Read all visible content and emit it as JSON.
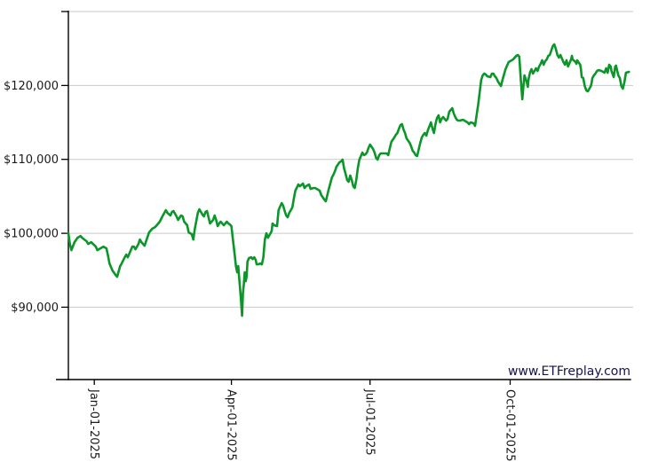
{
  "watermark": "www.ETFreplay.com",
  "chart_data": {
    "type": "line",
    "title": "",
    "legend": "none",
    "grid": "on",
    "line_color": "#0a9628",
    "grid_color": "#c9c9c9",
    "axis_color": "#000000",
    "label_color": "#1a1a1a",
    "watermark_color": "#13134b",
    "x_axis_unit": "days-since-series-start",
    "x_domain": [
      0,
      369
    ],
    "x_ticks": [
      {
        "label": "Jan-01-2025",
        "day": 17
      },
      {
        "label": "Apr-01-2025",
        "day": 107
      },
      {
        "label": "Jul-01-2025",
        "day": 198
      },
      {
        "label": "Oct-01-2025",
        "day": 290
      }
    ],
    "y_domain": [
      80210,
      130000
    ],
    "y_ticks": [
      {
        "label": "$90,000",
        "value": 90000
      },
      {
        "label": "$100,000",
        "value": 100000
      },
      {
        "label": "$110,000",
        "value": 110000
      },
      {
        "label": "$120,000",
        "value": 120000
      },
      {
        "label": "",
        "value": 130000
      }
    ],
    "points": [
      [
        0,
        100000
      ],
      [
        1,
        98560
      ],
      [
        2,
        97720
      ],
      [
        4,
        98800
      ],
      [
        6,
        99400
      ],
      [
        8,
        99640
      ],
      [
        9,
        99400
      ],
      [
        12,
        98920
      ],
      [
        13,
        98560
      ],
      [
        15,
        98800
      ],
      [
        18,
        98200
      ],
      [
        19,
        97720
      ],
      [
        21,
        97960
      ],
      [
        23,
        98200
      ],
      [
        25,
        97960
      ],
      [
        26,
        97000
      ],
      [
        27,
        95920
      ],
      [
        29,
        94960
      ],
      [
        31,
        94360
      ],
      [
        32,
        94120
      ],
      [
        34,
        95560
      ],
      [
        35,
        95920
      ],
      [
        37,
        96760
      ],
      [
        38,
        97120
      ],
      [
        39,
        96760
      ],
      [
        41,
        97720
      ],
      [
        42,
        98200
      ],
      [
        43,
        98200
      ],
      [
        44,
        97840
      ],
      [
        46,
        98560
      ],
      [
        47,
        99160
      ],
      [
        48,
        98800
      ],
      [
        50,
        98320
      ],
      [
        51,
        98920
      ],
      [
        53,
        100120
      ],
      [
        55,
        100600
      ],
      [
        57,
        100840
      ],
      [
        59,
        101320
      ],
      [
        60,
        101560
      ],
      [
        62,
        102400
      ],
      [
        64,
        103120
      ],
      [
        65,
        102760
      ],
      [
        67,
        102400
      ],
      [
        68,
        102880
      ],
      [
        69,
        103000
      ],
      [
        71,
        102280
      ],
      [
        72,
        101800
      ],
      [
        74,
        102400
      ],
      [
        75,
        102280
      ],
      [
        76,
        101560
      ],
      [
        78,
        101080
      ],
      [
        79,
        100120
      ],
      [
        81,
        99880
      ],
      [
        82,
        99160
      ],
      [
        83,
        100600
      ],
      [
        85,
        102760
      ],
      [
        86,
        103240
      ],
      [
        88,
        102520
      ],
      [
        89,
        102280
      ],
      [
        90,
        102880
      ],
      [
        91,
        103000
      ],
      [
        92,
        102160
      ],
      [
        93,
        101320
      ],
      [
        95,
        101800
      ],
      [
        96,
        102400
      ],
      [
        97,
        101800
      ],
      [
        98,
        100960
      ],
      [
        99,
        101320
      ],
      [
        100,
        101560
      ],
      [
        102,
        101080
      ],
      [
        103,
        101320
      ],
      [
        104,
        101560
      ],
      [
        105,
        101320
      ],
      [
        106,
        101200
      ],
      [
        107,
        100960
      ],
      [
        108,
        99160
      ],
      [
        109,
        97400
      ],
      [
        110,
        95560
      ],
      [
        110.8,
        94720
      ],
      [
        111.5,
        95560
      ],
      [
        112.2,
        93760
      ],
      [
        112.8,
        92320
      ],
      [
        113.4,
        90760
      ],
      [
        114,
        88840
      ],
      [
        114.6,
        91960
      ],
      [
        115.2,
        93160
      ],
      [
        115.8,
        94720
      ],
      [
        116.4,
        93520
      ],
      [
        117,
        94120
      ],
      [
        117.6,
        96160
      ],
      [
        118.5,
        96640
      ],
      [
        120,
        96760
      ],
      [
        121,
        96520
      ],
      [
        122,
        96760
      ],
      [
        123,
        96400
      ],
      [
        123.6,
        95800
      ],
      [
        124.5,
        95800
      ],
      [
        126,
        95920
      ],
      [
        127,
        95800
      ],
      [
        128,
        96760
      ],
      [
        128.5,
        97960
      ],
      [
        129,
        99160
      ],
      [
        130,
        100000
      ],
      [
        131,
        99400
      ],
      [
        133,
        100120
      ],
      [
        133.5,
        100360
      ],
      [
        134,
        101320
      ],
      [
        135,
        101080
      ],
      [
        137,
        100960
      ],
      [
        138,
        103120
      ],
      [
        139,
        103600
      ],
      [
        140,
        104080
      ],
      [
        141,
        103720
      ],
      [
        142,
        103000
      ],
      [
        143,
        102400
      ],
      [
        144,
        102160
      ],
      [
        145,
        102760
      ],
      [
        146,
        103120
      ],
      [
        147,
        103480
      ],
      [
        148,
        104680
      ],
      [
        149,
        105760
      ],
      [
        151,
        106600
      ],
      [
        152,
        106360
      ],
      [
        154,
        106720
      ],
      [
        155,
        106120
      ],
      [
        156,
        106360
      ],
      [
        158,
        106600
      ],
      [
        159,
        106000
      ],
      [
        161,
        106120
      ],
      [
        162,
        106120
      ],
      [
        164,
        105880
      ],
      [
        165,
        105760
      ],
      [
        166,
        105160
      ],
      [
        168,
        104560
      ],
      [
        169,
        104320
      ],
      [
        170,
        105160
      ],
      [
        171,
        106000
      ],
      [
        173,
        107560
      ],
      [
        174,
        107920
      ],
      [
        175,
        108400
      ],
      [
        176,
        109000
      ],
      [
        178,
        109600
      ],
      [
        179,
        109720
      ],
      [
        180,
        109960
      ],
      [
        181,
        108760
      ],
      [
        182,
        108040
      ],
      [
        183,
        107200
      ],
      [
        184,
        106960
      ],
      [
        185,
        107800
      ],
      [
        186,
        107200
      ],
      [
        187,
        106360
      ],
      [
        188,
        106120
      ],
      [
        189,
        107200
      ],
      [
        190,
        108760
      ],
      [
        191,
        109960
      ],
      [
        193,
        110920
      ],
      [
        194,
        110560
      ],
      [
        195,
        110680
      ],
      [
        196,
        110920
      ],
      [
        197,
        111520
      ],
      [
        198,
        112000
      ],
      [
        200,
        111400
      ],
      [
        201,
        110920
      ],
      [
        202,
        110200
      ],
      [
        203,
        109960
      ],
      [
        204,
        110560
      ],
      [
        205,
        110800
      ],
      [
        207,
        110800
      ],
      [
        209,
        110800
      ],
      [
        210,
        110560
      ],
      [
        211,
        111520
      ],
      [
        212,
        112360
      ],
      [
        214,
        112960
      ],
      [
        215,
        113320
      ],
      [
        216,
        113560
      ],
      [
        217,
        114160
      ],
      [
        218,
        114640
      ],
      [
        219,
        114760
      ],
      [
        220,
        114040
      ],
      [
        221,
        113560
      ],
      [
        222,
        112840
      ],
      [
        224,
        112240
      ],
      [
        225,
        111760
      ],
      [
        226,
        111160
      ],
      [
        227,
        110920
      ],
      [
        228,
        110560
      ],
      [
        229,
        110440
      ],
      [
        230,
        111400
      ],
      [
        231,
        112240
      ],
      [
        232,
        112960
      ],
      [
        233,
        113320
      ],
      [
        234,
        113560
      ],
      [
        235,
        113200
      ],
      [
        236,
        113920
      ],
      [
        238,
        115000
      ],
      [
        239,
        114160
      ],
      [
        240,
        113560
      ],
      [
        241,
        114760
      ],
      [
        242,
        115600
      ],
      [
        243,
        115960
      ],
      [
        244,
        115000
      ],
      [
        245,
        115480
      ],
      [
        246,
        115720
      ],
      [
        247,
        115480
      ],
      [
        248,
        115240
      ],
      [
        249,
        115480
      ],
      [
        250,
        116440
      ],
      [
        252,
        116920
      ],
      [
        253,
        116200
      ],
      [
        254,
        115720
      ],
      [
        255,
        115360
      ],
      [
        256,
        115240
      ],
      [
        257,
        115240
      ],
      [
        259,
        115360
      ],
      [
        260,
        115240
      ],
      [
        261,
        115120
      ],
      [
        262,
        115000
      ],
      [
        263,
        114760
      ],
      [
        264,
        115000
      ],
      [
        266,
        114880
      ],
      [
        267,
        114520
      ],
      [
        268,
        115960
      ],
      [
        269,
        117400
      ],
      [
        270,
        119080
      ],
      [
        271,
        120760
      ],
      [
        272,
        121360
      ],
      [
        273,
        121600
      ],
      [
        274,
        121480
      ],
      [
        275,
        121240
      ],
      [
        277,
        121120
      ],
      [
        278,
        121600
      ],
      [
        279,
        121600
      ],
      [
        280,
        121240
      ],
      [
        281,
        121000
      ],
      [
        282,
        120520
      ],
      [
        284,
        119920
      ],
      [
        285,
        120760
      ],
      [
        286,
        121480
      ],
      [
        287,
        122200
      ],
      [
        288,
        122680
      ],
      [
        289,
        123160
      ],
      [
        291,
        123400
      ],
      [
        292,
        123520
      ],
      [
        293,
        123760
      ],
      [
        294,
        124000
      ],
      [
        295,
        124120
      ],
      [
        296,
        123880
      ],
      [
        297,
        120760
      ],
      [
        298,
        118120
      ],
      [
        298.6,
        119560
      ],
      [
        299.4,
        121360
      ],
      [
        301,
        120400
      ],
      [
        301.6,
        119800
      ],
      [
        302,
        120760
      ],
      [
        303,
        121720
      ],
      [
        304,
        122200
      ],
      [
        305,
        121600
      ],
      [
        306,
        121960
      ],
      [
        307,
        122320
      ],
      [
        308,
        121960
      ],
      [
        309,
        122560
      ],
      [
        310,
        122920
      ],
      [
        311,
        123400
      ],
      [
        312,
        122800
      ],
      [
        313,
        123280
      ],
      [
        314,
        123520
      ],
      [
        315,
        124000
      ],
      [
        316,
        124120
      ],
      [
        317,
        124720
      ],
      [
        318,
        125320
      ],
      [
        319,
        125560
      ],
      [
        320,
        124960
      ],
      [
        321,
        124120
      ],
      [
        322,
        123760
      ],
      [
        323,
        124120
      ],
      [
        324,
        123640
      ],
      [
        325,
        123160
      ],
      [
        326,
        122800
      ],
      [
        327,
        123400
      ],
      [
        328,
        122560
      ],
      [
        329,
        123040
      ],
      [
        330,
        123520
      ],
      [
        330.6,
        124000
      ],
      [
        331,
        123520
      ],
      [
        333,
        123160
      ],
      [
        333.5,
        122920
      ],
      [
        334,
        123400
      ],
      [
        336,
        122800
      ],
      [
        336.5,
        122200
      ],
      [
        337,
        121120
      ],
      [
        338,
        121000
      ],
      [
        339,
        119920
      ],
      [
        340,
        119320
      ],
      [
        341,
        119200
      ],
      [
        343,
        119920
      ],
      [
        343.5,
        120400
      ],
      [
        344,
        121000
      ],
      [
        345,
        121360
      ],
      [
        346,
        121600
      ],
      [
        347,
        121960
      ],
      [
        348,
        122080
      ],
      [
        350,
        121960
      ],
      [
        351,
        121840
      ],
      [
        352,
        121720
      ],
      [
        353,
        122320
      ],
      [
        354,
        121720
      ],
      [
        355,
        122800
      ],
      [
        356,
        122560
      ],
      [
        356.5,
        121960
      ],
      [
        358,
        121120
      ],
      [
        359,
        122560
      ],
      [
        359.5,
        122680
      ],
      [
        361,
        121360
      ],
      [
        362,
        121000
      ],
      [
        362.5,
        120520
      ],
      [
        363,
        119920
      ],
      [
        364,
        119560
      ],
      [
        365,
        120400
      ],
      [
        366,
        121720
      ],
      [
        368,
        121840
      ]
    ]
  }
}
